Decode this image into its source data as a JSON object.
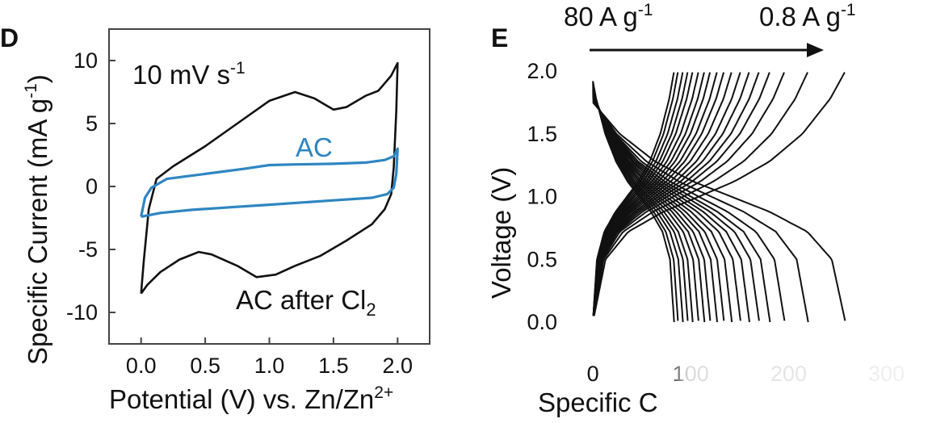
{
  "panel_d": {
    "letter": "D",
    "annotation_rate": {
      "base": "10 mV s",
      "sup": "-1"
    },
    "chart_data": {
      "type": "line",
      "title": "",
      "xlabel": {
        "base": "Potential (V) vs. Zn/Zn",
        "sup": "2+"
      },
      "ylabel": {
        "base": "Specific Current (mA g",
        "sup": "-1",
        "tail": ")"
      },
      "xlim": [
        -0.25,
        2.25
      ],
      "ylim": [
        -12.5,
        12.5
      ],
      "x_ticks": [
        "0.0",
        "0.5",
        "1.0",
        "1.5",
        "2.0"
      ],
      "x_tick_values": [
        0,
        0.5,
        1.0,
        1.5,
        2.0
      ],
      "y_ticks": [
        "10",
        "5",
        "0",
        "-5",
        "-10"
      ],
      "y_tick_values": [
        10,
        5,
        0,
        -5,
        -10
      ],
      "grid": false,
      "series": [
        {
          "name": "AC after Cl2",
          "label_base": "AC after Cl",
          "label_sub": "2",
          "color": "#111111",
          "points": [
            [
              0.0,
              -8.5
            ],
            [
              0.02,
              -6.0
            ],
            [
              0.06,
              -1.8
            ],
            [
              0.12,
              0.6
            ],
            [
              0.25,
              1.6
            ],
            [
              0.5,
              3.2
            ],
            [
              0.75,
              5.0
            ],
            [
              1.0,
              6.8
            ],
            [
              1.2,
              7.5
            ],
            [
              1.35,
              7.0
            ],
            [
              1.5,
              6.1
            ],
            [
              1.6,
              6.3
            ],
            [
              1.75,
              7.2
            ],
            [
              1.85,
              7.6
            ],
            [
              1.9,
              8.2
            ],
            [
              1.95,
              8.8
            ],
            [
              2.0,
              9.8
            ],
            [
              1.99,
              6.0
            ],
            [
              1.97,
              1.5
            ],
            [
              1.95,
              -0.6
            ],
            [
              1.9,
              -1.8
            ],
            [
              1.8,
              -3.0
            ],
            [
              1.6,
              -4.3
            ],
            [
              1.4,
              -5.5
            ],
            [
              1.2,
              -6.3
            ],
            [
              1.05,
              -7.0
            ],
            [
              0.9,
              -7.2
            ],
            [
              0.75,
              -6.3
            ],
            [
              0.55,
              -5.4
            ],
            [
              0.45,
              -5.2
            ],
            [
              0.3,
              -5.8
            ],
            [
              0.15,
              -6.8
            ],
            [
              0.05,
              -7.8
            ],
            [
              0.0,
              -8.5
            ]
          ]
        },
        {
          "name": "AC",
          "label_base": "AC",
          "label_sub": "",
          "color": "#2e86c1",
          "points": [
            [
              0.0,
              -2.4
            ],
            [
              0.03,
              -0.9
            ],
            [
              0.08,
              -0.1
            ],
            [
              0.2,
              0.6
            ],
            [
              0.5,
              1.0
            ],
            [
              0.8,
              1.4
            ],
            [
              1.0,
              1.7
            ],
            [
              1.2,
              1.75
            ],
            [
              1.5,
              1.8
            ],
            [
              1.75,
              1.9
            ],
            [
              1.9,
              2.1
            ],
            [
              1.97,
              2.4
            ],
            [
              2.0,
              3.0
            ],
            [
              1.99,
              1.0
            ],
            [
              1.97,
              -0.1
            ],
            [
              1.92,
              -0.6
            ],
            [
              1.8,
              -0.9
            ],
            [
              1.5,
              -1.1
            ],
            [
              1.0,
              -1.45
            ],
            [
              0.7,
              -1.65
            ],
            [
              0.4,
              -1.85
            ],
            [
              0.15,
              -2.1
            ],
            [
              0.05,
              -2.3
            ],
            [
              0.0,
              -2.4
            ]
          ]
        }
      ]
    }
  },
  "panel_e": {
    "letter": "E",
    "rate_start": {
      "base": "80 A g",
      "sup": "-1"
    },
    "rate_end": {
      "base": "0.8 A g",
      "sup": "-1"
    },
    "chart_data": {
      "type": "line",
      "title": "",
      "xlabel": "Specific C",
      "ylabel": "Voltage (V)",
      "xlim": [
        -10,
        330
      ],
      "ylim": [
        -0.17,
        2.22
      ],
      "x_ticks": [
        "0",
        "100",
        "200",
        "300"
      ],
      "x_tick_values": [
        0,
        100,
        200,
        300
      ],
      "y_ticks": [
        "2.0",
        "1.5",
        "1.0",
        "0.5",
        "0.0"
      ],
      "y_tick_values": [
        2.0,
        1.5,
        1.0,
        0.5,
        0.0
      ],
      "grid": false,
      "cycle_capacities": [
        83,
        87,
        92,
        97,
        102,
        108,
        114,
        120,
        127,
        134,
        142,
        151,
        160,
        170,
        181,
        196,
        220,
        258
      ],
      "curve_shape_v": [
        0.0,
        0.5,
        0.72,
        0.88,
        1.0,
        1.12,
        1.28,
        1.5,
        1.78,
        2.0
      ],
      "curve_shape_frac": [
        0.0,
        0.05,
        0.14,
        0.28,
        0.42,
        0.56,
        0.7,
        0.83,
        0.94,
        1.0
      ],
      "charge_start_v": 0.05,
      "discharge_start_v": 1.92
    }
  }
}
